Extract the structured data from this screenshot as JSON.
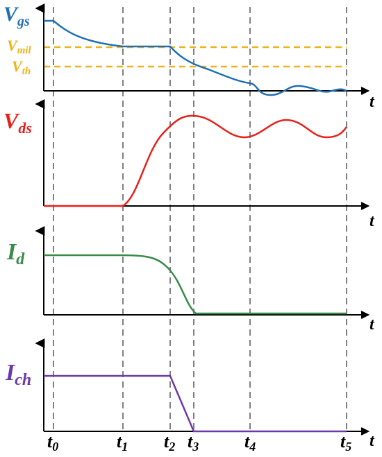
{
  "colors": {
    "vgs": "#1f6fb4",
    "vds": "#e8201a",
    "id": "#3a8a4a",
    "ich": "#6a3aa8",
    "threshold": "#f0b21a",
    "dashed": "#808080",
    "axis": "#000000"
  },
  "panels": [
    {
      "key": "vgs",
      "label_main": "V",
      "label_sub": "gs",
      "axis_label": "t"
    },
    {
      "key": "vds",
      "label_main": "V",
      "label_sub": "ds",
      "axis_label": "t"
    },
    {
      "key": "id",
      "label_main": "I",
      "label_sub": "d",
      "axis_label": "t"
    },
    {
      "key": "ich",
      "label_main": "I",
      "label_sub": "ch",
      "axis_label": "t"
    }
  ],
  "reference_lines": [
    {
      "key": "vmil",
      "label_main": "V",
      "label_sub": "mil"
    },
    {
      "key": "vth",
      "label_main": "V",
      "label_sub": "th"
    }
  ],
  "time_markers": [
    {
      "main": "t",
      "sub": "0"
    },
    {
      "main": "t",
      "sub": "1"
    },
    {
      "main": "t",
      "sub": "2"
    },
    {
      "main": "t",
      "sub": "3"
    },
    {
      "main": "t",
      "sub": "4"
    },
    {
      "main": "t",
      "sub": "5"
    }
  ]
}
